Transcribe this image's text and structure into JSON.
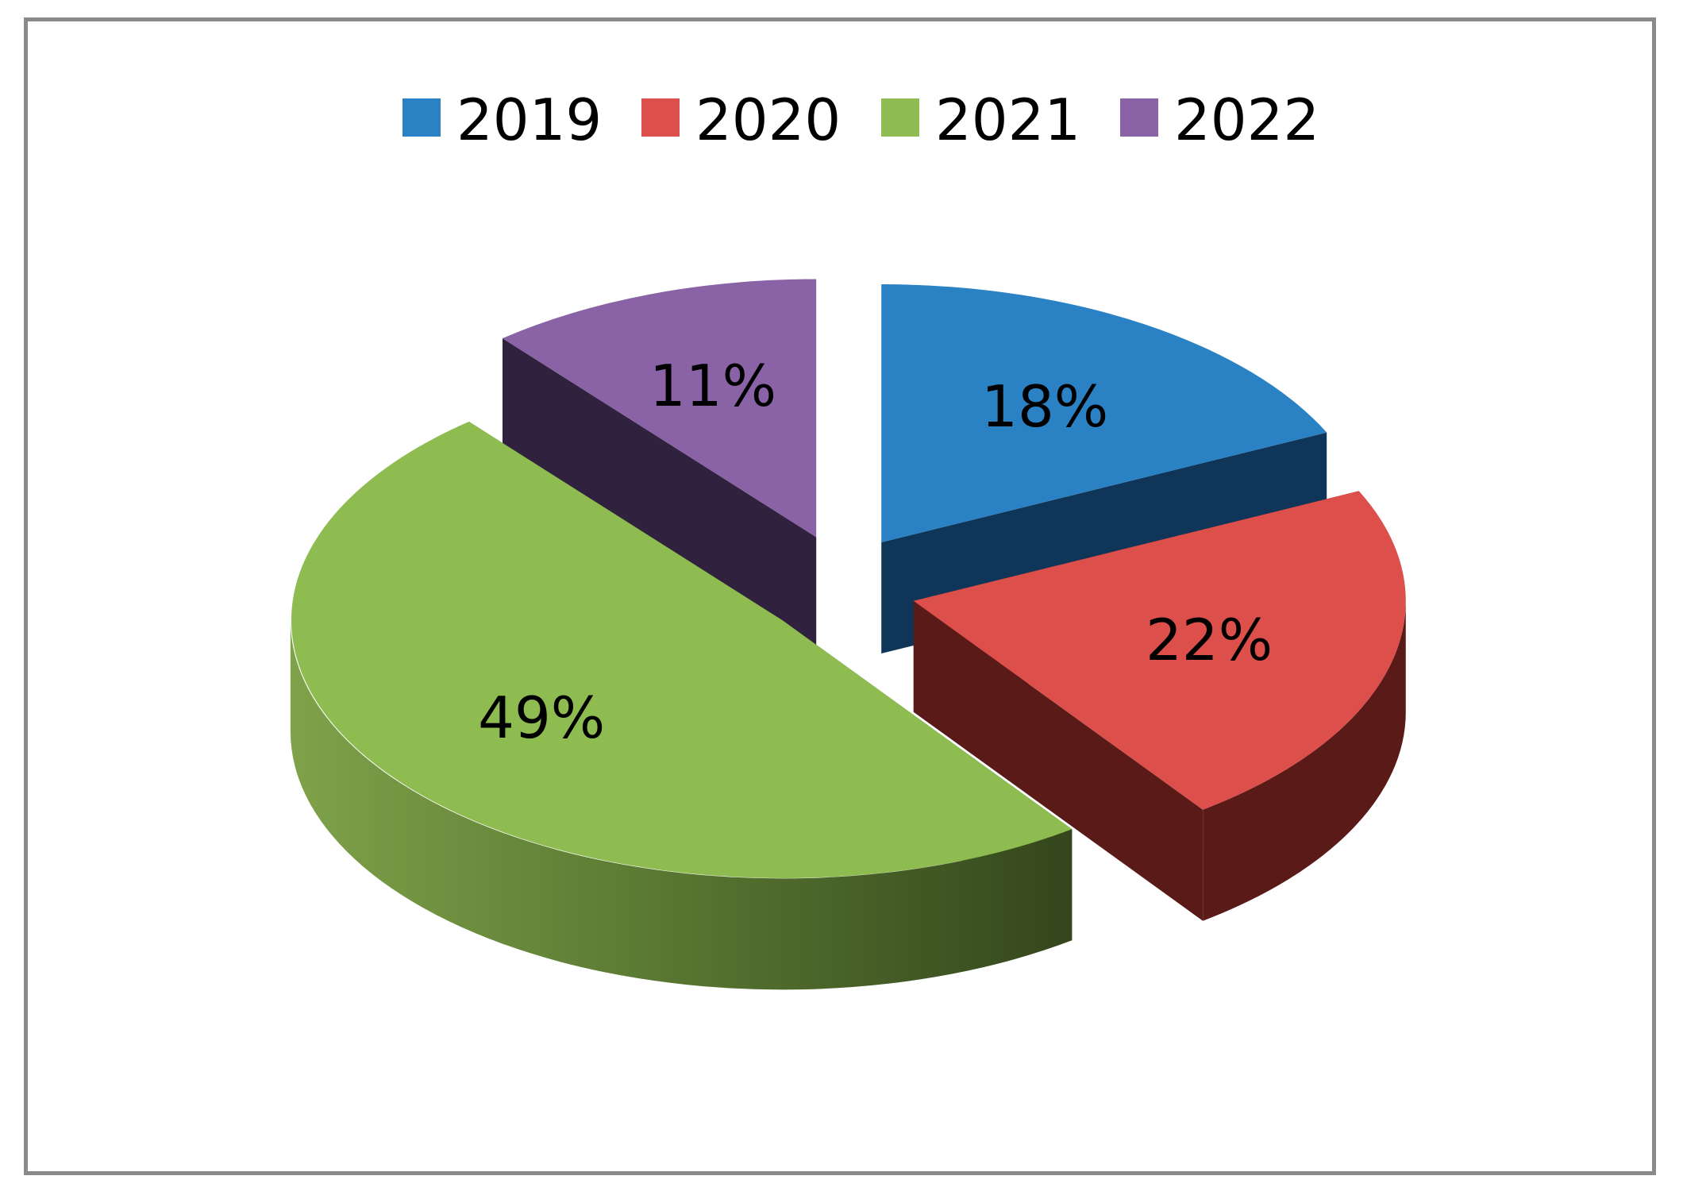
{
  "chart_data": {
    "type": "pie",
    "style": "3d-exploded",
    "categories": [
      "2019",
      "2020",
      "2021",
      "2022"
    ],
    "values": [
      18,
      22,
      49,
      11
    ],
    "data_labels": [
      "18%",
      "22%",
      "49%",
      "11%"
    ],
    "colors": [
      "#2a82c4",
      "#dc4f4b",
      "#8ebc51",
      "#8a63a6"
    ],
    "side_colors": [
      "#0f3659",
      "#5a1a18",
      "#3a4e1f",
      "#30213e"
    ],
    "legend_position": "top"
  }
}
